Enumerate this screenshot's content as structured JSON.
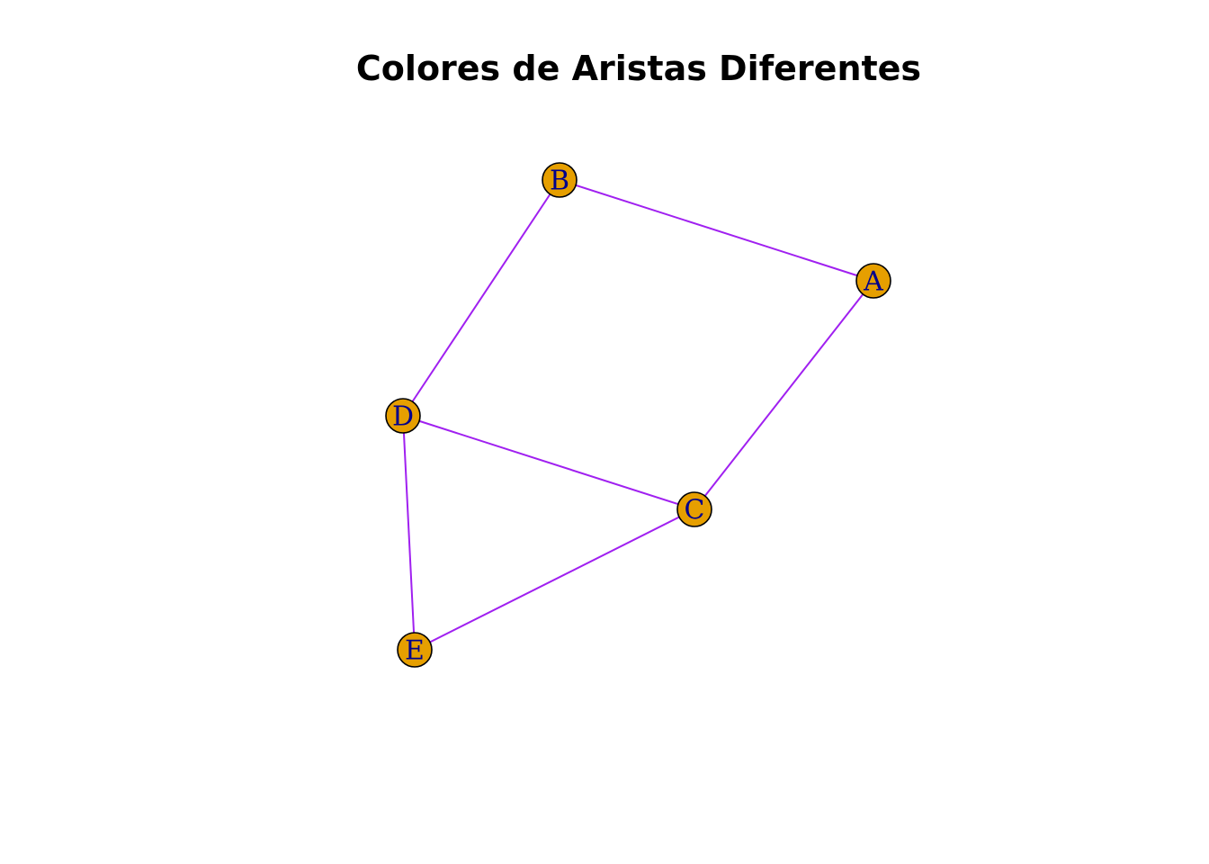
{
  "title": "Colores de Aristas Diferentes",
  "colors": {
    "edge": "#A020F0",
    "node_fill": "#E69F00",
    "node_border": "#000000",
    "label": "#00008B"
  },
  "nodes": [
    {
      "id": "A",
      "label": "A"
    },
    {
      "id": "B",
      "label": "B"
    },
    {
      "id": "C",
      "label": "C"
    },
    {
      "id": "D",
      "label": "D"
    },
    {
      "id": "E",
      "label": "E"
    }
  ],
  "edges": [
    {
      "from": "A",
      "to": "B"
    },
    {
      "from": "A",
      "to": "C"
    },
    {
      "from": "B",
      "to": "D"
    },
    {
      "from": "C",
      "to": "D"
    },
    {
      "from": "C",
      "to": "E"
    },
    {
      "from": "D",
      "to": "E"
    }
  ]
}
